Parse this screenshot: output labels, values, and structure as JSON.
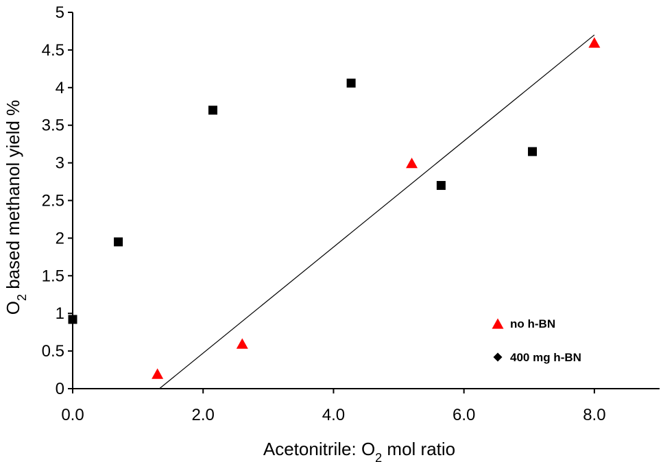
{
  "chart_data": {
    "type": "scatter",
    "title": "",
    "xlabel_parts": [
      "Acetonitrile: O",
      "2",
      " mol ratio"
    ],
    "ylabel_parts": [
      "O",
      "2",
      " based methanol yield %"
    ],
    "xlim": [
      0,
      9
    ],
    "ylim": [
      0,
      5
    ],
    "x_ticks": [
      0,
      2,
      4,
      6,
      8
    ],
    "x_tick_labels": [
      "0.0",
      "2.0",
      "4.0",
      "6.0",
      "8.0"
    ],
    "y_ticks": [
      0,
      0.5,
      1,
      1.5,
      2,
      2.5,
      3,
      3.5,
      4,
      4.5,
      5
    ],
    "y_tick_labels": [
      "0",
      "0.5",
      "1",
      "1.5",
      "2",
      "2.5",
      "3",
      "3.5",
      "4",
      "4.5",
      "5"
    ],
    "grid": false,
    "legend_position": "bottom-right",
    "series": [
      {
        "name": "no h-BN",
        "marker": "triangle",
        "color": "#ff0000",
        "x": [
          1.3,
          2.6,
          5.2,
          8.0
        ],
        "y": [
          0.2,
          0.6,
          3.0,
          4.6
        ]
      },
      {
        "name": "400 mg h-BN",
        "marker": "square",
        "legend_marker": "diamond",
        "color": "#000000",
        "x": [
          0.0,
          0.7,
          2.15,
          4.27,
          5.65,
          7.05
        ],
        "y": [
          0.92,
          1.95,
          3.7,
          4.06,
          2.7,
          3.15
        ]
      }
    ],
    "trendline": {
      "series": "no h-BN",
      "color": "#000000",
      "x": [
        1.33,
        8.0
      ],
      "y": [
        0.0,
        4.7
      ]
    }
  }
}
